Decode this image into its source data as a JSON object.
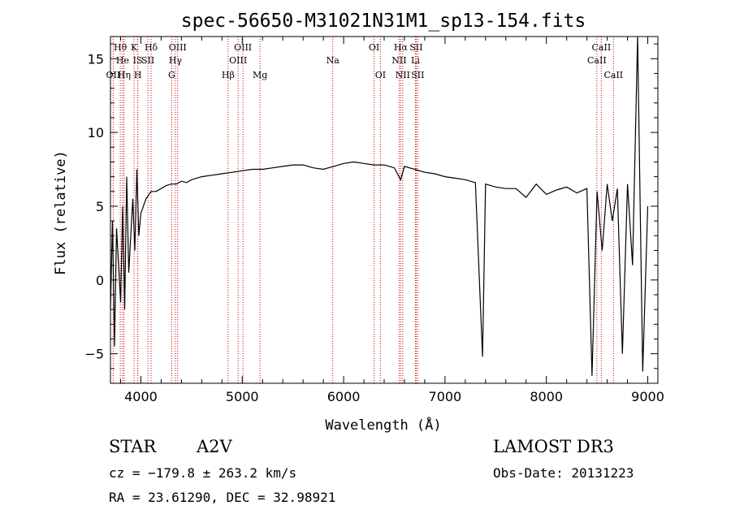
{
  "chart_data": {
    "type": "line",
    "title": "spec-56650-M31021N31M1_sp13-154.fits",
    "xlabel": "Wavelength (Å)",
    "ylabel": "Flux (relative)",
    "xlim": [
      3700,
      9100
    ],
    "ylim": [
      -7.0,
      16.5
    ],
    "x_ticks": [
      4000,
      5000,
      6000,
      7000,
      8000,
      9000
    ],
    "y_ticks": [
      -5,
      0,
      5,
      10,
      15
    ],
    "line_color": "#000000",
    "marker_color": "#cc0000",
    "spectrum": {
      "x": [
        3700,
        3720,
        3740,
        3760,
        3780,
        3800,
        3820,
        3840,
        3860,
        3880,
        3900,
        3920,
        3940,
        3960,
        3980,
        4000,
        4050,
        4100,
        4150,
        4200,
        4250,
        4300,
        4350,
        4400,
        4450,
        4500,
        4600,
        4700,
        4800,
        4900,
        5000,
        5100,
        5200,
        5300,
        5400,
        5500,
        5600,
        5700,
        5800,
        5900,
        6000,
        6100,
        6200,
        6300,
        6400,
        6500,
        6563,
        6600,
        6700,
        6800,
        6900,
        7000,
        7100,
        7200,
        7300,
        7370,
        7400,
        7500,
        7600,
        7700,
        7800,
        7900,
        8000,
        8100,
        8200,
        8300,
        8400,
        8450,
        8500,
        8550,
        8600,
        8650,
        8700,
        8750,
        8800,
        8850,
        8900,
        8950,
        9000
      ],
      "y": [
        -2.0,
        4.0,
        -4.5,
        3.5,
        1.0,
        -1.5,
        5.0,
        -2.0,
        7.0,
        0.5,
        3.0,
        5.5,
        2.0,
        7.5,
        3.0,
        4.5,
        5.5,
        6.0,
        6.0,
        6.2,
        6.4,
        6.5,
        6.5,
        6.7,
        6.6,
        6.8,
        7.0,
        7.1,
        7.2,
        7.3,
        7.4,
        7.5,
        7.5,
        7.6,
        7.7,
        7.8,
        7.8,
        7.6,
        7.5,
        7.7,
        7.9,
        8.0,
        7.9,
        7.8,
        7.8,
        7.6,
        6.8,
        7.7,
        7.5,
        7.3,
        7.2,
        7.0,
        6.9,
        6.8,
        6.6,
        -5.2,
        6.5,
        6.3,
        6.2,
        6.2,
        5.6,
        6.5,
        5.8,
        6.1,
        6.3,
        5.9,
        6.2,
        -6.5,
        6.0,
        2.0,
        6.5,
        4.0,
        6.2,
        -5.0,
        6.5,
        1.0,
        16.5,
        -6.2,
        5.0
      ]
    },
    "lines": [
      {
        "label": "Hθ",
        "wave": 3797,
        "row": 1
      },
      {
        "label": "OII",
        "wave": 3727,
        "row": 3
      },
      {
        "label": "He",
        "wave": 3820,
        "row": 2
      },
      {
        "label": "Hη",
        "wave": 3835,
        "row": 3
      },
      {
        "label": "K",
        "wave": 3933,
        "row": 1
      },
      {
        "label": "IS",
        "wave": 3969,
        "row": 2
      },
      {
        "label": "H",
        "wave": 3970,
        "row": 3
      },
      {
        "label": "SII",
        "wave": 4069,
        "row": 2
      },
      {
        "label": "Hδ",
        "wave": 4101,
        "row": 1
      },
      {
        "label": "OIII",
        "wave": 4363,
        "row": 1
      },
      {
        "label": "Hγ",
        "wave": 4340,
        "row": 2
      },
      {
        "label": "G",
        "wave": 4304,
        "row": 3
      },
      {
        "label": "Hβ",
        "wave": 4861,
        "row": 3
      },
      {
        "label": "OIII",
        "wave": 5007,
        "row": 1
      },
      {
        "label": "OIII",
        "wave": 4959,
        "row": 2
      },
      {
        "label": "Mg",
        "wave": 5175,
        "row": 3
      },
      {
        "label": "Na",
        "wave": 5893,
        "row": 2
      },
      {
        "label": "OI",
        "wave": 6300,
        "row": 1
      },
      {
        "label": "OI",
        "wave": 6363,
        "row": 3
      },
      {
        "label": "Hα",
        "wave": 6563,
        "row": 1
      },
      {
        "label": "NII",
        "wave": 6548,
        "row": 2
      },
      {
        "label": "NII",
        "wave": 6583,
        "row": 3
      },
      {
        "label": "SII",
        "wave": 6716,
        "row": 1
      },
      {
        "label": "Li",
        "wave": 6708,
        "row": 2
      },
      {
        "label": "SII",
        "wave": 6731,
        "row": 3
      },
      {
        "label": "CaII",
        "wave": 8542,
        "row": 1
      },
      {
        "label": "CaII",
        "wave": 8498,
        "row": 2
      },
      {
        "label": "CaII",
        "wave": 8662,
        "row": 3
      }
    ]
  },
  "info": {
    "object_class": "STAR",
    "subclass": "A2V",
    "survey": "LAMOST DR3",
    "cz": "cz = −179.8 ± 263.2 km/s",
    "obs_date": "Obs-Date: 20131223",
    "coords": "RA =  23.61290, DEC =  32.98921"
  }
}
